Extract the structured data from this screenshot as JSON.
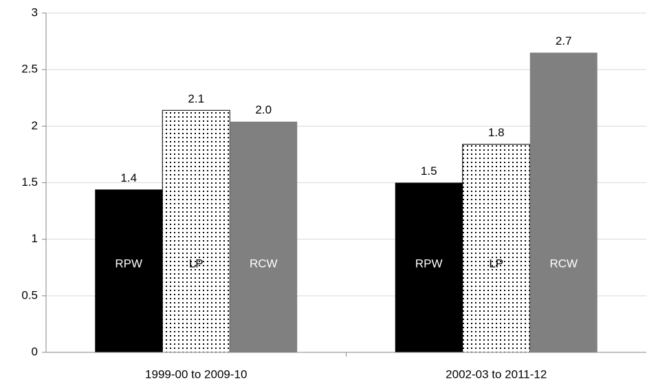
{
  "chart_data": {
    "type": "bar",
    "categories": [
      "1999-00 to 2009-10",
      "2002-03 to 2011-12"
    ],
    "series": [
      {
        "name": "RPW",
        "color": "#000000",
        "values": [
          1.44,
          1.5
        ],
        "value_labels": [
          "1.4",
          "1.5"
        ]
      },
      {
        "name": "LP",
        "color": "#ffffff",
        "pattern": "dots",
        "values": [
          2.14,
          1.84
        ],
        "value_labels": [
          "2.1",
          "1.8"
        ]
      },
      {
        "name": "RCW",
        "color": "#808080",
        "values": [
          2.04,
          2.65
        ],
        "value_labels": [
          "2.0",
          "2.7"
        ]
      }
    ],
    "ylim": [
      0,
      3
    ],
    "yticks": [
      0,
      0.5,
      1,
      1.5,
      2,
      2.5,
      3
    ],
    "grid": true
  }
}
